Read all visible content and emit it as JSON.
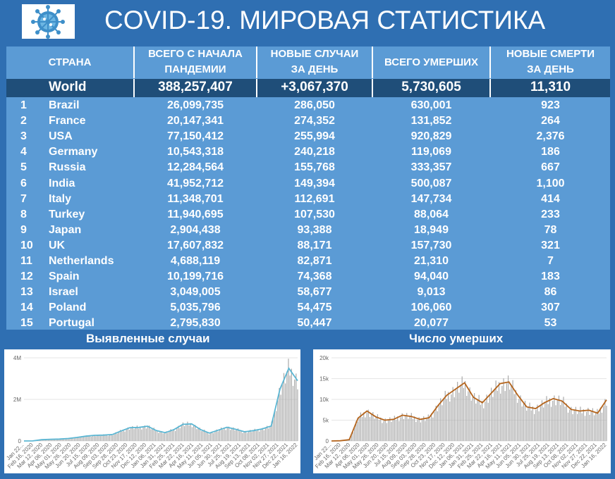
{
  "title": "COVID-19. МИРОВАЯ СТАТИСТИКА",
  "colors": {
    "background": "#2f6fb2",
    "table": "#5b9bd5",
    "world_row": "#1f4e79",
    "cases_line": "#5bb6d3",
    "deaths_line": "#b5651d"
  },
  "headers": {
    "country": "СТРАНА",
    "total_cases_line1": "ВСЕГО С НАЧАЛА",
    "total_cases_line2": "ПАНДЕМИИ",
    "new_cases_line1": "НОВЫЕ СЛУЧАИ",
    "new_cases_line2": "ЗА ДЕНЬ",
    "total_deaths": "ВСЕГО УМЕРШИХ",
    "new_deaths_line1": "НОВЫЕ СМЕРТИ",
    "new_deaths_line2": "ЗА ДЕНЬ"
  },
  "world": {
    "name": "World",
    "total_cases": "388,257,407",
    "new_cases": "+3,067,370",
    "total_deaths": "5,730,605",
    "new_deaths": "11,310"
  },
  "rows": [
    {
      "rank": "1",
      "country": "Brazil",
      "total_cases": "26,099,735",
      "new_cases": "286,050",
      "total_deaths": "630,001",
      "new_deaths": "923"
    },
    {
      "rank": "2",
      "country": "France",
      "total_cases": "20,147,341",
      "new_cases": "274,352",
      "total_deaths": "131,852",
      "new_deaths": "264"
    },
    {
      "rank": "3",
      "country": "USA",
      "total_cases": "77,150,412",
      "new_cases": "255,994",
      "total_deaths": "920,829",
      "new_deaths": "2,376"
    },
    {
      "rank": "4",
      "country": "Germany",
      "total_cases": "10,543,318",
      "new_cases": "240,218",
      "total_deaths": "119,069",
      "new_deaths": "186"
    },
    {
      "rank": "5",
      "country": "Russia",
      "total_cases": "12,284,564",
      "new_cases": "155,768",
      "total_deaths": "333,357",
      "new_deaths": "667"
    },
    {
      "rank": "6",
      "country": "India",
      "total_cases": "41,952,712",
      "new_cases": "149,394",
      "total_deaths": "500,087",
      "new_deaths": "1,100"
    },
    {
      "rank": "7",
      "country": "Italy",
      "total_cases": "11,348,701",
      "new_cases": "112,691",
      "total_deaths": "147,734",
      "new_deaths": "414"
    },
    {
      "rank": "8",
      "country": "Turkey",
      "total_cases": "11,940,695",
      "new_cases": "107,530",
      "total_deaths": "88,064",
      "new_deaths": "233"
    },
    {
      "rank": "9",
      "country": "Japan",
      "total_cases": "2,904,438",
      "new_cases": "93,388",
      "total_deaths": "18,949",
      "new_deaths": "78"
    },
    {
      "rank": "10",
      "country": "UK",
      "total_cases": "17,607,832",
      "new_cases": "88,171",
      "total_deaths": "157,730",
      "new_deaths": "321"
    },
    {
      "rank": "11",
      "country": "Netherlands",
      "total_cases": "4,688,119",
      "new_cases": "82,871",
      "total_deaths": "21,310",
      "new_deaths": "7"
    },
    {
      "rank": "12",
      "country": "Spain",
      "total_cases": "10,199,716",
      "new_cases": "74,368",
      "total_deaths": "94,040",
      "new_deaths": "183"
    },
    {
      "rank": "13",
      "country": "Israel",
      "total_cases": "3,049,005",
      "new_cases": "58,677",
      "total_deaths": "9,013",
      "new_deaths": "86"
    },
    {
      "rank": "14",
      "country": "Poland",
      "total_cases": "5,035,796",
      "new_cases": "54,475",
      "total_deaths": "106,060",
      "new_deaths": "307"
    },
    {
      "rank": "15",
      "country": "Portugal",
      "total_cases": "2,795,830",
      "new_cases": "50,447",
      "total_deaths": "20,077",
      "new_deaths": "53"
    }
  ],
  "chart_data": [
    {
      "type": "bar",
      "title": "Выявленные случаи",
      "y_ticks": [
        "4M",
        "2M",
        "0"
      ],
      "ylim": [
        0,
        4000000
      ],
      "x_ticks": [
        "Jan 22...",
        "Feb 16, 2020",
        "Mar 12, 2020",
        "Apr 06, 2020",
        "May 01, 2020",
        "May 26, 2020",
        "Jun 20, 2020",
        "Jul 15, 2020",
        "Aug 09, 2020",
        "Sep 03, 2020",
        "Sep 28, 2020",
        "Oct 23, 2020",
        "Nov 17, 2020",
        "Dec 12, 2020",
        "Jan 06, 2021",
        "Jan 31, 2021",
        "Feb 25, 2021",
        "Mar 22, 2021",
        "Apr 16, 2021",
        "May 11, 2021",
        "Jun 05, 2021",
        "Jun 30, 2021",
        "Jul 25, 2021",
        "Aug 19, 2021",
        "Sep 13, 2021",
        "Oct 08, 2021",
        "Nov 02, 2021",
        "Nov 27, 2021",
        "Dec 22, 2021",
        "Jan 16, 2022"
      ],
      "trend_points": [
        0,
        5000,
        60000,
        80000,
        90000,
        120000,
        170000,
        230000,
        270000,
        280000,
        310000,
        480000,
        640000,
        650000,
        710000,
        500000,
        400000,
        550000,
        800000,
        820000,
        550000,
        380000,
        520000,
        660000,
        560000,
        440000,
        500000,
        580000,
        720000,
        2500000,
        3500000,
        2900000
      ]
    },
    {
      "type": "bar",
      "title": "Число умерших",
      "y_ticks": [
        "20k",
        "15k",
        "10k",
        "5k",
        "0"
      ],
      "ylim": [
        0,
        20000
      ],
      "x_ticks": [
        "Jan 22...",
        "Feb 16, 2020",
        "Mar 12, 2020",
        "Apr 06, 2020",
        "May 01, 2020",
        "May 26, 2020",
        "Jun 20, 2020",
        "Jul 15, 2020",
        "Aug 09, 2020",
        "Sep 03, 2020",
        "Sep 28, 2020",
        "Oct 23, 2020",
        "Nov 17, 2020",
        "Dec 12, 2020",
        "Jan 06, 2021",
        "Jan 31, 2021",
        "Feb 25, 2021",
        "Mar 22, 2021",
        "Apr 16, 2021",
        "May 11, 2021",
        "Jun 05, 2021",
        "Jun 30, 2021",
        "Jul 25, 2021",
        "Aug 19, 2021",
        "Sep 13, 2021",
        "Oct 08, 2021",
        "Nov 02, 2021",
        "Nov 27, 2021",
        "Dec 22, 2021",
        "Jan 16, 2022"
      ],
      "trend_points": [
        0,
        50,
        300,
        5500,
        7200,
        5800,
        5000,
        5200,
        6200,
        5900,
        5200,
        5600,
        8500,
        11000,
        12500,
        14000,
        10500,
        9200,
        11500,
        13800,
        14200,
        11000,
        8200,
        7800,
        9200,
        10200,
        9600,
        7600,
        7200,
        7400,
        6700,
        9900
      ]
    }
  ]
}
